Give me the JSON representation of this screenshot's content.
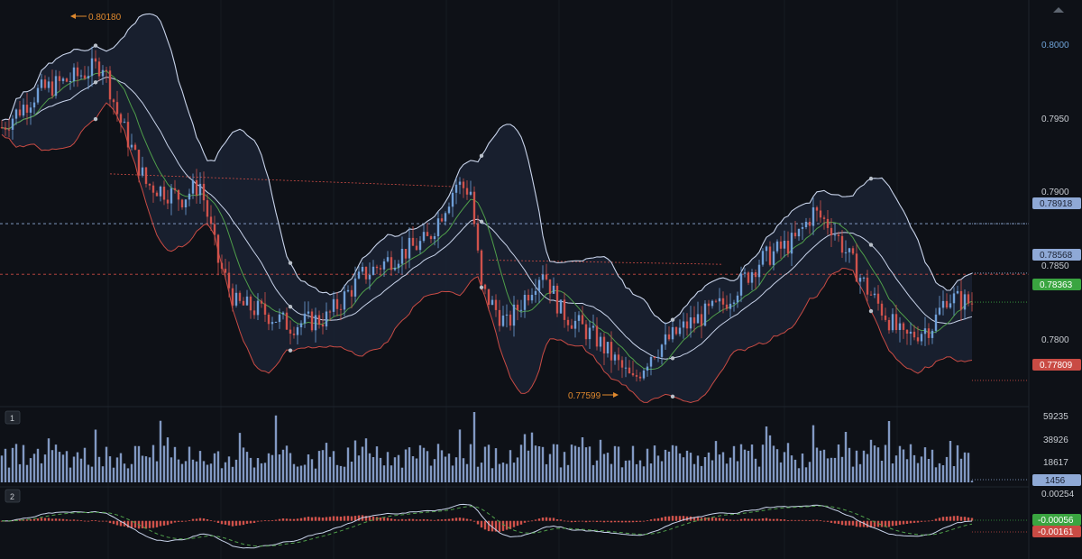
{
  "chart_data": {
    "type": "candlestick",
    "panels": [
      {
        "id": "price",
        "indicators": [
          "Bollinger Bands",
          "Moving Average"
        ],
        "y_ticks": [
          "0.8000",
          "0.7950",
          "0.7900",
          "0.7850",
          "0.7800"
        ],
        "y_range": [
          0.7763,
          0.805
        ],
        "high_marker": "0.80180",
        "low_marker": "0.77599",
        "price_tags": [
          {
            "label": "0.78918",
            "value": 0.78918,
            "color": "#8fa9d6",
            "text_color": "#1b2233"
          },
          {
            "label": "0.78568",
            "value": 0.78568,
            "color": "#8fa9d6",
            "text_color": "#1b2233"
          },
          {
            "label": "0.78363",
            "value": 0.78363,
            "color": "#3aa540",
            "text_color": "#ffffff"
          },
          {
            "label": "0.77809",
            "value": 0.77809,
            "color": "#c94b44",
            "text_color": "#ffffff"
          }
        ],
        "hlines": [
          {
            "value": 0.78918,
            "color": "#8fa9d6"
          },
          {
            "value": 0.7856,
            "color": "#c94b44"
          }
        ],
        "trendline": {
          "from": [
            0.7927,
            0.7918
          ],
          "color": "#c94b44"
        },
        "up_color": "#6f9fd8",
        "down_color": "#d0524b",
        "band_color": "#c8d3ea",
        "basis_color": "#c8d3ea",
        "ma_color": "#4f9e4a",
        "lower_band_color": "#c94b44"
      },
      {
        "id": "volume",
        "number": "1",
        "y_ticks": [
          "59235",
          "38926",
          "18617"
        ],
        "last_value": "1456",
        "y_range": [
          0,
          66000
        ],
        "bar_color": "#8fa9d6"
      },
      {
        "id": "macd",
        "number": "2",
        "y_ticks": [
          "0.00254"
        ],
        "tags": [
          {
            "label": "-0.00056",
            "color": "#3aa540"
          },
          {
            "label": "-0.00161",
            "color": "#c94b44"
          }
        ],
        "y_range": [
          -0.0035,
          0.0031
        ],
        "hist_color": "#d0524b",
        "macd_color": "#c8d3ea",
        "signal_color": "#4f9e4a"
      }
    ]
  }
}
